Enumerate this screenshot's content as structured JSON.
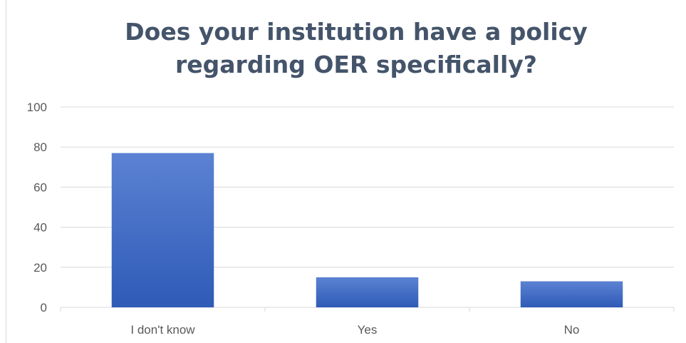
{
  "chart_data": {
    "type": "bar",
    "title": [
      "Does your institution have a policy",
      "regarding OER specifically?"
    ],
    "categories": [
      "I don't know",
      "Yes",
      "No"
    ],
    "values": [
      77,
      15,
      13
    ],
    "ylim": [
      0,
      100
    ],
    "yticks": [
      0,
      20,
      40,
      60,
      80,
      100
    ],
    "xlabel": "",
    "ylabel": "",
    "grid": true,
    "legend": "none",
    "colors": {
      "bar_top": "#5b82d3",
      "bar_bottom": "#2f5bb7",
      "grid": "#d9d9d9",
      "text": "#595959",
      "title": "#44546a"
    }
  }
}
